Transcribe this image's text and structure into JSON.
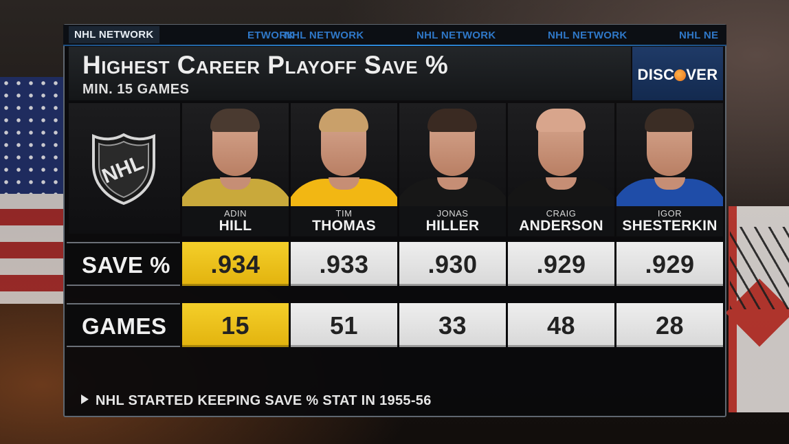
{
  "network": {
    "label": "NHL NETWORK",
    "ticker": [
      "ETWORK",
      "NHL NETWORK",
      "NHL NETWORK",
      "NHL NETWORK",
      "NHL NE"
    ]
  },
  "graphic": {
    "title": "Highest Career Playoff Save %",
    "subtitle": "MIN. 15 GAMES",
    "footnote": "NHL STARTED KEEPING SAVE % STAT IN 1955-56"
  },
  "sponsor": {
    "name_left": "DISC",
    "name_right": "VER"
  },
  "logo": {
    "text": "NHL"
  },
  "players": [
    {
      "first": "ADIN",
      "last": "HILL",
      "jersey": "#c9a93b",
      "trim": "#222222",
      "hair": "#4a3a30"
    },
    {
      "first": "TIM",
      "last": "THOMAS",
      "jersey": "#f2b713",
      "trim": "#151515",
      "hair": "#c9a06a"
    },
    {
      "first": "JONAS",
      "last": "HILLER",
      "jersey": "#171717",
      "trim": "#c84a22",
      "hair": "#3a2a22"
    },
    {
      "first": "CRAIG",
      "last": "ANDERSON",
      "jersey": "#151515",
      "trim": "#c8202a",
      "hair": "#d8a58c"
    },
    {
      "first": "IGOR",
      "last": "SHESTERKIN",
      "jersey": "#1f4da8",
      "trim": "#c8202a",
      "hair": "#3b2d25"
    }
  ],
  "stats": {
    "save_label": "SAVE %",
    "games_label": "GAMES",
    "save": [
      ".934",
      ".933",
      ".930",
      ".929",
      ".929"
    ],
    "games": [
      "15",
      "51",
      "33",
      "48",
      "28"
    ],
    "highlight_color": "#f4cf2a"
  }
}
